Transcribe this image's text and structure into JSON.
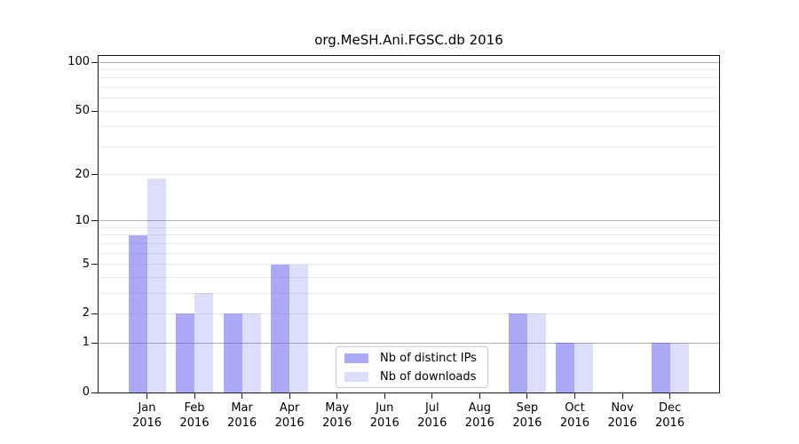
{
  "title": "org.MeSH.Ani.FGSC.db 2016",
  "chart_data": {
    "type": "bar",
    "title": "org.MeSH.Ani.FGSC.db 2016",
    "year_label": "2016",
    "categories": [
      "Jan",
      "Feb",
      "Mar",
      "Apr",
      "May",
      "Jun",
      "Jul",
      "Aug",
      "Sep",
      "Oct",
      "Nov",
      "Dec"
    ],
    "series": [
      {
        "name": "Nb of distinct IPs",
        "values": [
          8,
          2,
          2,
          5,
          0,
          0,
          0,
          0,
          2,
          1,
          0,
          1
        ],
        "color_hex": "#a9a9f6",
        "base_color": "#5555f0",
        "alpha": 0.5
      },
      {
        "name": "Nb of downloads",
        "values": [
          19,
          3,
          2,
          5,
          0,
          0,
          0,
          0,
          2,
          1,
          0,
          1
        ],
        "color_hex": "#dcdcf9",
        "base_color": "#5555f0",
        "alpha": 0.2
      }
    ],
    "xlabel": "",
    "ylabel": "",
    "y_scale": "log1p",
    "ylim": [
      0,
      110
    ],
    "y_ticks": [
      0,
      1,
      2,
      5,
      10,
      20,
      50,
      100
    ],
    "grid": {
      "on": true,
      "major_lines": [
        1,
        10,
        100
      ],
      "minor_lines": [
        2,
        3,
        4,
        5,
        6,
        7,
        8,
        9,
        20,
        30,
        40,
        50,
        60,
        70,
        80,
        90
      ],
      "major_color": "#b0b0b0",
      "minor_color": "#eaeaea"
    },
    "legend": {
      "position": "lower center inside",
      "entries": [
        "Nb of distinct IPs",
        "Nb of downloads"
      ]
    }
  }
}
